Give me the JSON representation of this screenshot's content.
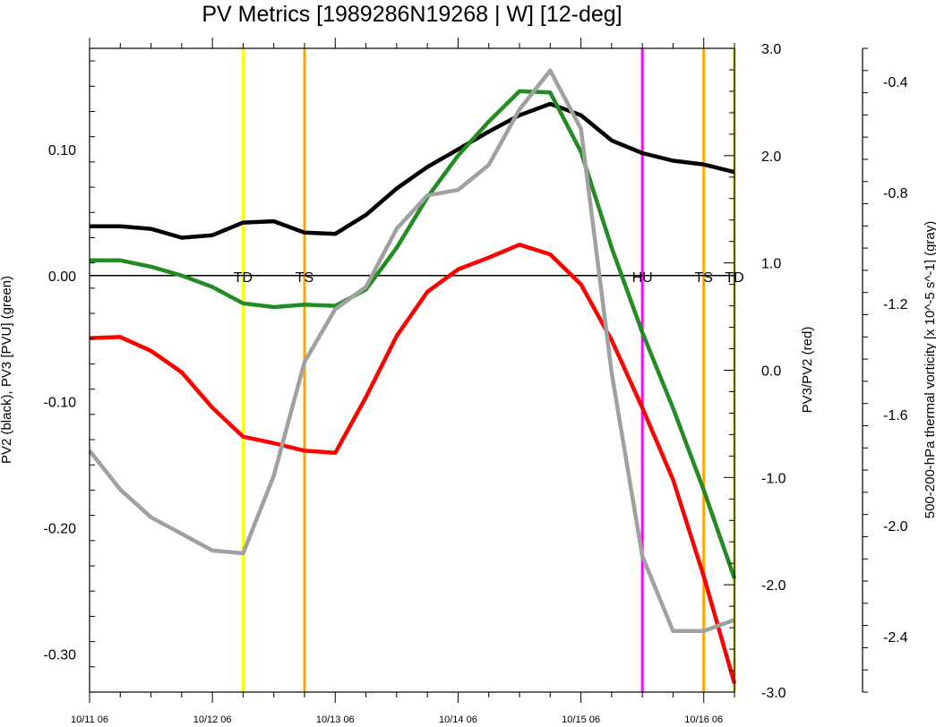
{
  "chart_data": {
    "type": "line",
    "title": "PV Metrics [1989286N19268 | W] [12-deg]",
    "xlabel": "",
    "x_tick_labels": [
      "10/11 06",
      "10/12 06",
      "10/13 06",
      "10/14 06",
      "10/15 06",
      "10/16 06"
    ],
    "xlim_hours": [
      0,
      126
    ],
    "y_left": {
      "label": "PV2 (black), PV3 [PVU] (green)",
      "ylim": [
        -0.33,
        0.18
      ],
      "ticks": [
        0.1,
        0.0,
        -0.1,
        -0.2,
        -0.3
      ],
      "tick_labels": [
        "0.10",
        "0.00",
        "-0.10",
        "-0.20",
        "-0.30"
      ]
    },
    "y_right1": {
      "label": "PV3/PV2 (red)",
      "ylim": [
        -3.0,
        3.0
      ],
      "ticks": [
        3.0,
        2.0,
        1.0,
        0.0,
        -1.0,
        -2.0,
        -3.0
      ],
      "tick_labels": [
        "3.0",
        "2.0",
        "1.0",
        "0.0",
        "-1.0",
        "-2.0",
        "-3.0"
      ]
    },
    "y_right2": {
      "label": "500-200-hPa thermal vorticity [x 10^-5 s^-1] (gray)",
      "ylim": [
        -2.6,
        -0.28
      ],
      "ticks": [
        -0.4,
        -0.8,
        -1.2,
        -1.6,
        -2.0,
        -2.4
      ],
      "tick_labels": [
        "-0.4",
        "-0.8",
        "-1.2",
        "-1.6",
        "-2.0",
        "-2.4"
      ]
    },
    "series": [
      {
        "axis": "left",
        "color": "#000000",
        "x": [
          0,
          6,
          12,
          18,
          24,
          30,
          36,
          42,
          48,
          54,
          60,
          66,
          72,
          78,
          84,
          90,
          96,
          102,
          108,
          114,
          120,
          126
        ],
        "values": [
          0.039,
          0.039,
          0.037,
          0.03,
          0.032,
          0.042,
          0.043,
          0.034,
          0.033,
          0.048,
          0.069,
          0.086,
          0.1,
          0.114,
          0.127,
          0.136,
          0.127,
          0.107,
          0.097,
          0.091,
          0.088,
          0.082
        ]
      },
      {
        "axis": "left",
        "color": "#228b22",
        "x": [
          0,
          6,
          12,
          18,
          24,
          30,
          36,
          42,
          48,
          54,
          60,
          66,
          72,
          78,
          84,
          90,
          96,
          102,
          108,
          114,
          120,
          126
        ],
        "values": [
          0.012,
          0.012,
          0.007,
          0.0,
          -0.009,
          -0.022,
          -0.025,
          -0.023,
          -0.024,
          -0.011,
          0.022,
          0.062,
          0.095,
          0.122,
          0.146,
          0.145,
          0.098,
          0.022,
          -0.045,
          -0.105,
          -0.17,
          -0.24
        ]
      },
      {
        "axis": "right1",
        "color": "#ff0000",
        "x": [
          0,
          6,
          12,
          18,
          24,
          30,
          36,
          42,
          48,
          54,
          60,
          66,
          72,
          78,
          84,
          90,
          96,
          102,
          108,
          114,
          120,
          126
        ],
        "values": [
          0.3,
          0.31,
          0.18,
          -0.02,
          -0.35,
          -0.62,
          -0.68,
          -0.75,
          -0.77,
          -0.25,
          0.32,
          0.73,
          0.94,
          1.05,
          1.17,
          1.08,
          0.8,
          0.28,
          -0.35,
          -1.02,
          -1.92,
          -2.92
        ]
      },
      {
        "axis": "right2",
        "color": "#a0a0a0",
        "x": [
          0,
          6,
          12,
          18,
          24,
          30,
          36,
          42,
          48,
          54,
          60,
          66,
          72,
          78,
          84,
          90,
          96,
          102,
          108,
          114,
          120,
          126
        ],
        "values": [
          -1.73,
          -1.87,
          -1.97,
          -2.03,
          -2.09,
          -2.1,
          -1.82,
          -1.41,
          -1.22,
          -1.14,
          -0.93,
          -0.81,
          -0.79,
          -0.7,
          -0.5,
          -0.36,
          -0.57,
          -1.45,
          -2.11,
          -2.38,
          -2.38,
          -2.34
        ]
      }
    ],
    "vertical_markers": [
      {
        "x": 30,
        "label": "TD",
        "color": "#ffff00"
      },
      {
        "x": 42,
        "label": "TS",
        "color": "#ffa500"
      },
      {
        "x": 108,
        "label": "HU",
        "color": "#ff00ff"
      },
      {
        "x": 120,
        "label": "TS",
        "color": "#ffa500"
      },
      {
        "x": 126,
        "label": "TD",
        "color": "#dddd00"
      }
    ],
    "zero_line": 0.0,
    "grid": false,
    "legend": "none"
  }
}
